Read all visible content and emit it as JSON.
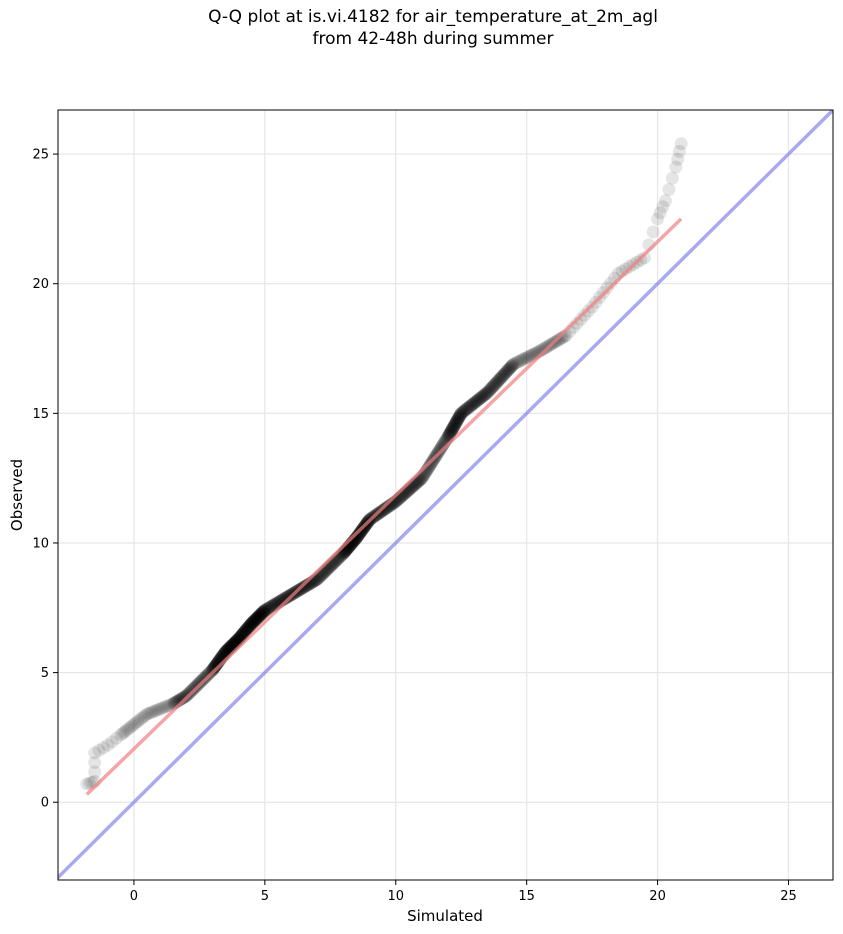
{
  "chart_data": {
    "type": "scatter",
    "title_line1": "Q-Q plot at is.vi.4182 for air_temperature_at_2m_agl",
    "title_line2": "from 42-48h during summer",
    "xlabel": "Simulated",
    "ylabel": "Observed",
    "xlim": [
      -2.9,
      26.7
    ],
    "ylim": [
      -3.0,
      26.7
    ],
    "xticks": [
      0,
      5,
      10,
      15,
      20,
      25
    ],
    "yticks": [
      0,
      5,
      10,
      15,
      20,
      25
    ],
    "grid": true,
    "colors": {
      "points": "#000000",
      "fit_line": "#f08080",
      "reference_line": "#7b7bea"
    },
    "quantile_anchors": [
      [
        -1.8,
        0.7
      ],
      [
        -1.5,
        0.8
      ],
      [
        -1.5,
        1.9
      ],
      [
        -1.0,
        2.2
      ],
      [
        -0.5,
        2.6
      ],
      [
        0.0,
        3.0
      ],
      [
        0.5,
        3.4
      ],
      [
        1.0,
        3.6
      ],
      [
        1.5,
        3.8
      ],
      [
        2.0,
        4.1
      ],
      [
        2.5,
        4.6
      ],
      [
        3.0,
        5.1
      ],
      [
        3.5,
        5.8
      ],
      [
        4.0,
        6.3
      ],
      [
        4.5,
        6.9
      ],
      [
        5.0,
        7.4
      ],
      [
        6.0,
        8.0
      ],
      [
        7.0,
        8.6
      ],
      [
        8.0,
        9.6
      ],
      [
        8.5,
        10.2
      ],
      [
        9.0,
        10.9
      ],
      [
        10.0,
        11.6
      ],
      [
        11.0,
        12.5
      ],
      [
        12.0,
        14.1
      ],
      [
        12.5,
        15.0
      ],
      [
        13.5,
        15.8
      ],
      [
        14.5,
        16.9
      ],
      [
        15.5,
        17.4
      ],
      [
        16.5,
        18.0
      ],
      [
        17.5,
        19.1
      ],
      [
        18.5,
        20.4
      ],
      [
        19.5,
        21.0
      ],
      [
        20.0,
        22.5
      ],
      [
        20.3,
        23.2
      ],
      [
        20.7,
        24.5
      ],
      [
        20.9,
        25.4
      ]
    ],
    "fit_line": {
      "x": [
        -1.8,
        20.9
      ],
      "y": [
        0.3,
        22.5
      ]
    },
    "reference_line": "y = x"
  }
}
